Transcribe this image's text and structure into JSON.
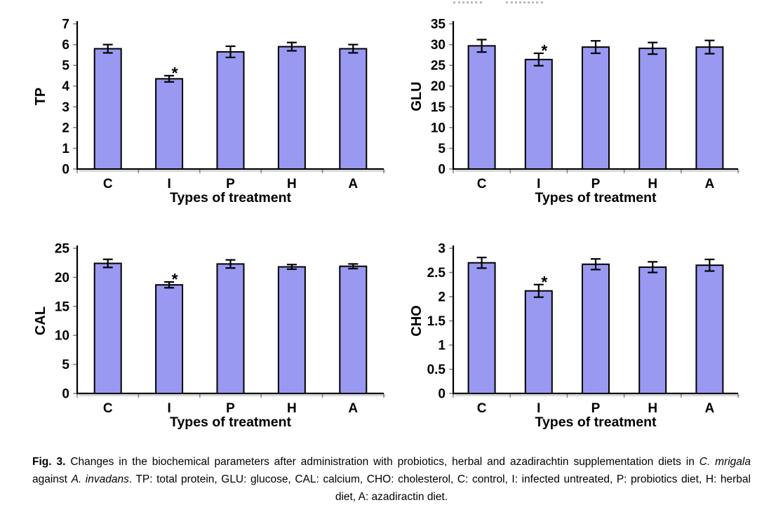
{
  "figure": {
    "significance_marker": "*",
    "bar_color": "#9999F2",
    "bar_border_color": "#000000",
    "axis_color": "#000000",
    "tick_color": "#808080",
    "axis_shadow_color": "#C9C9C9",
    "legend_marks_color": "#B9B9B9"
  },
  "chart_data": [
    {
      "type": "bar",
      "id": "TP",
      "title": "",
      "ylabel": "TP",
      "xlabel": "Types of treatment",
      "categories": [
        "C",
        "I",
        "P",
        "H",
        "A"
      ],
      "values": [
        5.8,
        4.35,
        5.65,
        5.9,
        5.8
      ],
      "errors": [
        0.2,
        0.15,
        0.27,
        0.2,
        0.2
      ],
      "significant": [
        false,
        true,
        false,
        false,
        false
      ],
      "ylim": [
        0,
        7
      ],
      "ytick_step": 1,
      "grid": false,
      "legend": "none"
    },
    {
      "type": "bar",
      "id": "GLU",
      "title": "",
      "ylabel": "GLU",
      "xlabel": "Types of treatment",
      "categories": [
        "C",
        "I",
        "P",
        "H",
        "A"
      ],
      "values": [
        29.7,
        26.4,
        29.4,
        29.1,
        29.4
      ],
      "errors": [
        1.5,
        1.5,
        1.5,
        1.4,
        1.6
      ],
      "significant": [
        false,
        true,
        false,
        false,
        false
      ],
      "ylim": [
        0,
        35
      ],
      "ytick_step": 5,
      "grid": false,
      "legend": "none"
    },
    {
      "type": "bar",
      "id": "CAL",
      "title": "",
      "ylabel": "CAL",
      "xlabel": "Types of treatment",
      "categories": [
        "C",
        "I",
        "P",
        "H",
        "A"
      ],
      "values": [
        22.4,
        18.7,
        22.3,
        21.8,
        21.9
      ],
      "errors": [
        0.7,
        0.5,
        0.7,
        0.4,
        0.4
      ],
      "significant": [
        false,
        true,
        false,
        false,
        false
      ],
      "ylim": [
        0,
        25
      ],
      "ytick_step": 5,
      "grid": false,
      "legend": "none"
    },
    {
      "type": "bar",
      "id": "CHO",
      "title": "",
      "ylabel": "CHO",
      "xlabel": "Types of treatment",
      "categories": [
        "C",
        "I",
        "P",
        "H",
        "A"
      ],
      "values": [
        2.7,
        2.12,
        2.67,
        2.61,
        2.65
      ],
      "errors": [
        0.11,
        0.13,
        0.11,
        0.11,
        0.12
      ],
      "significant": [
        false,
        true,
        false,
        false,
        false
      ],
      "ylim": [
        0,
        3
      ],
      "ytick_step": 0.5,
      "grid": false,
      "legend": "none"
    }
  ],
  "caption": {
    "segments": [
      {
        "text": "Fig. 3.",
        "style": "bold"
      },
      {
        "text": " Changes in the biochemical parameters after administration with probiotics, herbal and azadirachtin supplementation diets in ",
        "style": "normal"
      },
      {
        "text": "C. mrigala",
        "style": "italic"
      },
      {
        "text": " against ",
        "style": "normal"
      },
      {
        "text": "A. invadans",
        "style": "italic"
      },
      {
        "text": ". TP: total protein, GLU: glucose, CAL: calcium, CHO: cholesterol, C: control, I: infected untreated, P: probiotics diet, H: herbal diet, A: azadiractin diet.",
        "style": "normal"
      }
    ]
  }
}
